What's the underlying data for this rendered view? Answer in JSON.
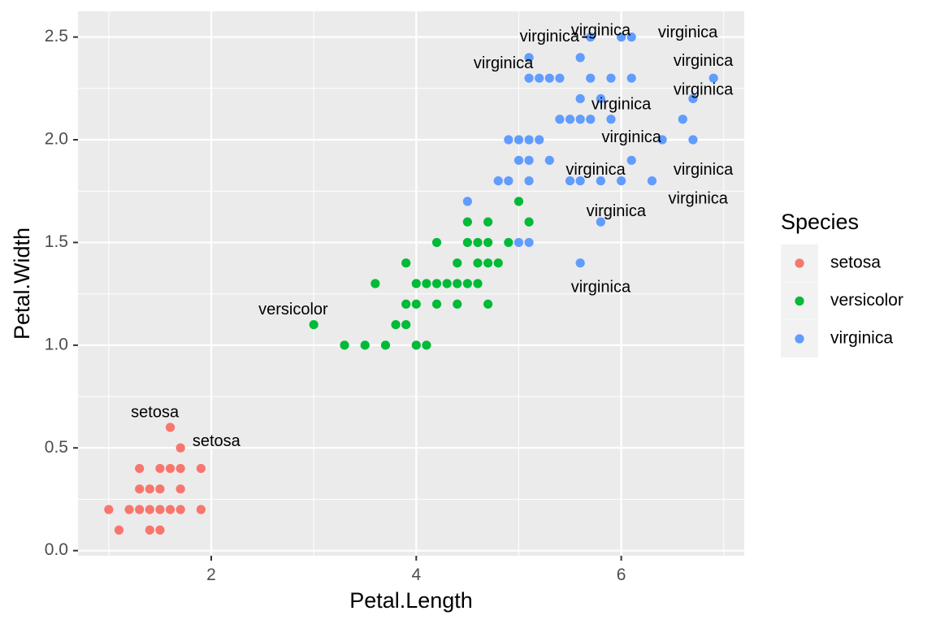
{
  "chart_data": {
    "type": "scatter",
    "xlabel": "Petal.Length",
    "ylabel": "Petal.Width",
    "xlim": [
      0.7,
      7.2
    ],
    "ylim": [
      -0.025,
      2.625
    ],
    "x_ticks": [
      2,
      4,
      6
    ],
    "y_ticks": [
      0.0,
      0.5,
      1.0,
      1.5,
      2.0,
      2.5
    ],
    "x_tick_labels": [
      "2",
      "4",
      "6"
    ],
    "y_tick_labels": [
      "0.0",
      "0.5",
      "1.0",
      "1.5",
      "2.0",
      "2.5"
    ],
    "grid": true,
    "legend": {
      "title": "Species",
      "position": "right",
      "entries": [
        "setosa",
        "versicolor",
        "virginica"
      ]
    },
    "series": [
      {
        "name": "setosa",
        "color": "#F8766D",
        "points": [
          [
            1.0,
            0.2
          ],
          [
            1.1,
            0.1
          ],
          [
            1.2,
            0.2
          ],
          [
            1.3,
            0.2
          ],
          [
            1.4,
            0.2
          ],
          [
            1.5,
            0.2
          ],
          [
            1.6,
            0.2
          ],
          [
            1.7,
            0.2
          ],
          [
            1.9,
            0.2
          ],
          [
            1.3,
            0.3
          ],
          [
            1.4,
            0.3
          ],
          [
            1.5,
            0.3
          ],
          [
            1.7,
            0.3
          ],
          [
            1.3,
            0.4
          ],
          [
            1.5,
            0.4
          ],
          [
            1.6,
            0.4
          ],
          [
            1.7,
            0.4
          ],
          [
            1.9,
            0.4
          ],
          [
            1.4,
            0.1
          ],
          [
            1.5,
            0.1
          ],
          [
            1.6,
            0.6
          ],
          [
            1.7,
            0.5
          ]
        ]
      },
      {
        "name": "versicolor",
        "color": "#00BA38",
        "points": [
          [
            3.3,
            1.0
          ],
          [
            3.5,
            1.0
          ],
          [
            3.7,
            1.0
          ],
          [
            4.0,
            1.0
          ],
          [
            4.1,
            1.0
          ],
          [
            3.0,
            1.1
          ],
          [
            3.8,
            1.1
          ],
          [
            3.9,
            1.1
          ],
          [
            3.9,
            1.2
          ],
          [
            4.0,
            1.2
          ],
          [
            4.2,
            1.2
          ],
          [
            4.4,
            1.2
          ],
          [
            4.7,
            1.2
          ],
          [
            3.6,
            1.3
          ],
          [
            4.0,
            1.3
          ],
          [
            4.1,
            1.3
          ],
          [
            4.2,
            1.3
          ],
          [
            4.3,
            1.3
          ],
          [
            4.4,
            1.3
          ],
          [
            4.5,
            1.3
          ],
          [
            4.6,
            1.3
          ],
          [
            3.9,
            1.4
          ],
          [
            4.4,
            1.4
          ],
          [
            4.6,
            1.4
          ],
          [
            4.7,
            1.4
          ],
          [
            4.8,
            1.4
          ],
          [
            4.2,
            1.5
          ],
          [
            4.5,
            1.5
          ],
          [
            4.6,
            1.5
          ],
          [
            4.7,
            1.5
          ],
          [
            4.9,
            1.5
          ],
          [
            4.5,
            1.6
          ],
          [
            4.7,
            1.6
          ],
          [
            5.1,
            1.6
          ],
          [
            5.0,
            1.7
          ]
        ]
      },
      {
        "name": "virginica",
        "color": "#619CFF",
        "points": [
          [
            5.6,
            1.4
          ],
          [
            5.8,
            1.6
          ],
          [
            4.5,
            1.7
          ],
          [
            5.0,
            1.5
          ],
          [
            5.1,
            1.5
          ],
          [
            4.8,
            1.8
          ],
          [
            4.9,
            1.8
          ],
          [
            5.1,
            1.8
          ],
          [
            5.5,
            1.8
          ],
          [
            5.6,
            1.8
          ],
          [
            5.8,
            1.8
          ],
          [
            6.0,
            1.8
          ],
          [
            6.3,
            1.8
          ],
          [
            5.0,
            1.9
          ],
          [
            5.1,
            1.9
          ],
          [
            5.3,
            1.9
          ],
          [
            6.1,
            1.9
          ],
          [
            4.9,
            2.0
          ],
          [
            5.0,
            2.0
          ],
          [
            5.1,
            2.0
          ],
          [
            5.2,
            2.0
          ],
          [
            6.4,
            2.0
          ],
          [
            6.7,
            2.0
          ],
          [
            5.4,
            2.1
          ],
          [
            5.5,
            2.1
          ],
          [
            5.6,
            2.1
          ],
          [
            5.7,
            2.1
          ],
          [
            5.9,
            2.1
          ],
          [
            6.6,
            2.1
          ],
          [
            5.6,
            2.2
          ],
          [
            5.8,
            2.2
          ],
          [
            6.7,
            2.2
          ],
          [
            5.1,
            2.3
          ],
          [
            5.2,
            2.3
          ],
          [
            5.3,
            2.3
          ],
          [
            5.4,
            2.3
          ],
          [
            5.7,
            2.3
          ],
          [
            5.9,
            2.3
          ],
          [
            6.1,
            2.3
          ],
          [
            6.9,
            2.3
          ],
          [
            5.1,
            2.4
          ],
          [
            5.6,
            2.4
          ],
          [
            5.7,
            2.5
          ],
          [
            6.0,
            2.5
          ],
          [
            6.1,
            2.5
          ]
        ]
      }
    ],
    "annotations": [
      {
        "text": "setosa",
        "x": 1.45,
        "y": 0.67
      },
      {
        "text": "setosa",
        "x": 2.05,
        "y": 0.53
      },
      {
        "text": "versicolor",
        "x": 2.8,
        "y": 1.17
      },
      {
        "text": "virginica",
        "x": 5.3,
        "y": 2.5,
        "leader_to": [
          5.7,
          2.5
        ]
      },
      {
        "text": "virginica",
        "x": 5.8,
        "y": 2.53
      },
      {
        "text": "virginica",
        "x": 6.65,
        "y": 2.52
      },
      {
        "text": "virginica",
        "x": 4.85,
        "y": 2.37
      },
      {
        "text": "virginica",
        "x": 6.8,
        "y": 2.38
      },
      {
        "text": "virginica",
        "x": 6.8,
        "y": 2.24
      },
      {
        "text": "virginica",
        "x": 6.0,
        "y": 2.17
      },
      {
        "text": "virginica",
        "x": 6.1,
        "y": 2.01
      },
      {
        "text": "virginica",
        "x": 5.75,
        "y": 1.85
      },
      {
        "text": "virginica",
        "x": 6.8,
        "y": 1.85
      },
      {
        "text": "virginica",
        "x": 6.75,
        "y": 1.71
      },
      {
        "text": "virginica",
        "x": 5.95,
        "y": 1.65
      },
      {
        "text": "virginica",
        "x": 5.8,
        "y": 1.28
      }
    ]
  }
}
